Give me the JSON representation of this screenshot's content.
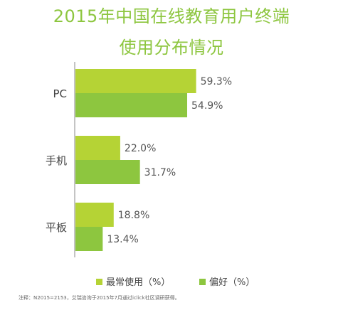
{
  "chart_data": {
    "type": "bar",
    "orientation": "horizontal",
    "title_line1": "2015年中国在线教育用户终端",
    "title_line2": "使用分布情况",
    "categories": [
      "PC",
      "手机",
      "平板"
    ],
    "series": [
      {
        "name": "最常使用（%）",
        "values": [
          59.3,
          22.0,
          18.8
        ],
        "labels": [
          "59.3%",
          "22.0%",
          "18.8%"
        ],
        "color": "#b5d335"
      },
      {
        "name": "偏好（%）",
        "values": [
          54.9,
          31.7,
          13.4
        ],
        "labels": [
          "54.9%",
          "31.7%",
          "13.4%"
        ],
        "color": "#8dc63f"
      }
    ],
    "xlim": [
      0,
      100
    ],
    "grid": false,
    "legend_position": "bottom"
  },
  "footnote": "注释：N2015=2153，艾瑞咨询于2015年7月通过iclick社区调研获得。",
  "colors": {
    "title": "#8dc63f",
    "axis": "#888888",
    "label_text": "#555555"
  }
}
